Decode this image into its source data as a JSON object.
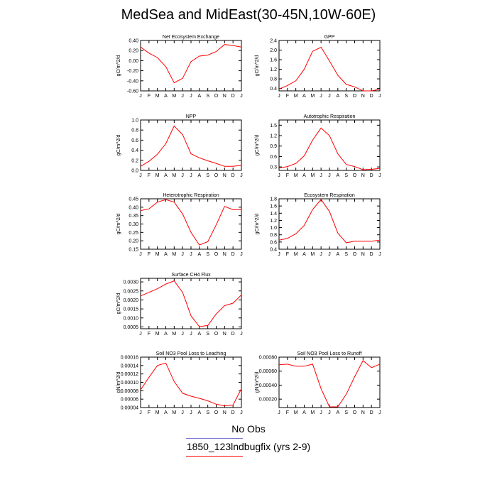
{
  "page": {
    "title": "MedSea and MidEast(30-45N,10W-60E)"
  },
  "legend": {
    "items": [
      {
        "label": "No Obs",
        "color": "#7b7bd0"
      },
      {
        "label": "1850_123lndbugfix (yrs 2-9)",
        "color": "#ff0000"
      }
    ]
  },
  "chart_data": [
    {
      "type": "line",
      "title": "Net Ecosystem Exchange",
      "ylabel": "gC/m^2/d",
      "x": [
        "J",
        "F",
        "M",
        "A",
        "M",
        "J",
        "J",
        "A",
        "S",
        "O",
        "N",
        "D",
        "J"
      ],
      "ylim": [
        -0.6,
        0.4
      ],
      "yticks": [
        "0.40",
        "0.20",
        "0.00",
        "-0.20",
        "-0.40",
        "-0.60"
      ],
      "ytick_values": [
        0.4,
        0.2,
        0.0,
        -0.2,
        -0.4,
        -0.6
      ],
      "series": [
        {
          "color": "#ff0000",
          "values": [
            0.27,
            0.15,
            0.06,
            -0.12,
            -0.44,
            -0.35,
            -0.02,
            0.09,
            0.11,
            0.18,
            0.32,
            0.3,
            0.27
          ]
        }
      ]
    },
    {
      "type": "line",
      "title": "GPP",
      "ylabel": "gC/m^2/d",
      "x": [
        "J",
        "F",
        "M",
        "A",
        "M",
        "J",
        "J",
        "A",
        "S",
        "O",
        "N",
        "D",
        "J"
      ],
      "ylim": [
        0.3,
        2.4
      ],
      "yticks": [
        "2.4",
        "2.0",
        "1.6",
        "1.2",
        "0.8",
        "0.4"
      ],
      "ytick_values": [
        2.4,
        2.0,
        1.6,
        1.2,
        0.8,
        0.4
      ],
      "series": [
        {
          "color": "#ff0000",
          "values": [
            0.38,
            0.52,
            0.72,
            1.2,
            1.95,
            2.12,
            1.55,
            0.95,
            0.57,
            0.47,
            0.3,
            0.3,
            0.37
          ]
        }
      ]
    },
    {
      "type": "line",
      "title": "NPP",
      "ylabel": "gC/m^2/d",
      "x": [
        "J",
        "F",
        "M",
        "A",
        "M",
        "J",
        "J",
        "A",
        "S",
        "O",
        "N",
        "D",
        "J"
      ],
      "ylim": [
        0.0,
        1.0
      ],
      "yticks": [
        "1.0",
        "0.8",
        "0.6",
        "0.4",
        "0.2",
        "0.0"
      ],
      "ytick_values": [
        1.0,
        0.8,
        0.6,
        0.4,
        0.2,
        0.0
      ],
      "series": [
        {
          "color": "#ff0000",
          "values": [
            0.08,
            0.18,
            0.32,
            0.53,
            0.88,
            0.71,
            0.33,
            0.25,
            0.19,
            0.14,
            0.08,
            0.08,
            0.1
          ]
        }
      ]
    },
    {
      "type": "line",
      "title": "Autotrophic Respiration",
      "ylabel": "gC/m^2/d",
      "x": [
        "J",
        "F",
        "M",
        "A",
        "M",
        "J",
        "J",
        "A",
        "S",
        "O",
        "N",
        "D",
        "J"
      ],
      "ylim": [
        0.2,
        1.65
      ],
      "yticks": [
        "1.5",
        "1.2",
        "0.9",
        "0.6",
        "0.3"
      ],
      "ytick_values": [
        1.5,
        1.2,
        0.9,
        0.6,
        0.3
      ],
      "series": [
        {
          "color": "#ff0000",
          "values": [
            0.27,
            0.31,
            0.4,
            0.62,
            1.07,
            1.42,
            1.2,
            0.68,
            0.37,
            0.31,
            0.22,
            0.23,
            0.26
          ]
        }
      ]
    },
    {
      "type": "line",
      "title": "Heterotrophic Respiration",
      "ylabel": "gC/m^2/d",
      "x": [
        "J",
        "F",
        "M",
        "A",
        "M",
        "J",
        "J",
        "A",
        "S",
        "O",
        "N",
        "D",
        "J"
      ],
      "ylim": [
        0.15,
        0.45
      ],
      "yticks": [
        "0.45",
        "0.40",
        "0.35",
        "0.30",
        "0.25",
        "0.20",
        "0.15"
      ],
      "ytick_values": [
        0.45,
        0.4,
        0.35,
        0.3,
        0.25,
        0.2,
        0.15
      ],
      "series": [
        {
          "color": "#ff0000",
          "values": [
            0.38,
            0.39,
            0.43,
            0.445,
            0.43,
            0.36,
            0.25,
            0.175,
            0.195,
            0.295,
            0.405,
            0.385,
            0.385
          ]
        }
      ]
    },
    {
      "type": "line",
      "title": "Ecosystem Respiration",
      "ylabel": "gC/m^2/d",
      "x": [
        "J",
        "F",
        "M",
        "A",
        "M",
        "J",
        "J",
        "A",
        "S",
        "O",
        "N",
        "D",
        "J"
      ],
      "ylim": [
        0.4,
        1.8
      ],
      "yticks": [
        "1.8",
        "1.6",
        "1.4",
        "1.2",
        "1.0",
        "0.8",
        "0.6",
        "0.4"
      ],
      "ytick_values": [
        1.8,
        1.6,
        1.4,
        1.2,
        1.0,
        0.8,
        0.6,
        0.4
      ],
      "series": [
        {
          "color": "#ff0000",
          "values": [
            0.65,
            0.7,
            0.83,
            1.06,
            1.5,
            1.78,
            1.45,
            0.85,
            0.58,
            0.62,
            0.62,
            0.62,
            0.65
          ]
        }
      ]
    },
    {
      "type": "line",
      "title": "Surface CH4 Flux",
      "ylabel": "gC/m^2/d",
      "x": [
        "J",
        "F",
        "M",
        "A",
        "M",
        "J",
        "J",
        "A",
        "S",
        "O",
        "N",
        "D",
        "J"
      ],
      "ylim": [
        0.0004,
        0.0032
      ],
      "yticks": [
        "0.0030",
        "0.0025",
        "0.0020",
        "0.0015",
        "0.0010",
        "0.0005"
      ],
      "ytick_values": [
        0.003,
        0.0025,
        0.002,
        0.0015,
        0.001,
        0.0005
      ],
      "series": [
        {
          "color": "#ff0000",
          "values": [
            0.00222,
            0.00242,
            0.00262,
            0.00288,
            0.00306,
            0.00242,
            0.00112,
            0.00052,
            0.00058,
            0.00122,
            0.00168,
            0.00182,
            0.00228
          ]
        }
      ]
    },
    {
      "type": "line",
      "title": "Soil NO3 Pool Loss to Leaching",
      "ylabel": "gN/m^2/d",
      "x": [
        "J",
        "F",
        "M",
        "A",
        "M",
        "J",
        "J",
        "A",
        "S",
        "O",
        "N",
        "D",
        "J"
      ],
      "ylim": [
        4e-05,
        0.00016
      ],
      "yticks": [
        "0.00016",
        "0.00014",
        "0.00012",
        "0.00010",
        "0.00008",
        "0.00006",
        "0.00004"
      ],
      "ytick_values": [
        0.00016,
        0.00014,
        0.00012,
        0.0001,
        8e-05,
        6e-05,
        4e-05
      ],
      "series": [
        {
          "color": "#ff0000",
          "values": [
            8.2e-05,
            0.000112,
            0.00014,
            0.000146,
            0.000102,
            7.4e-05,
            6.7e-05,
            6.2e-05,
            5.6e-05,
            4.8e-05,
            4.4e-05,
            4.6e-05,
            8.5e-05
          ]
        }
      ]
    },
    {
      "type": "line",
      "title": "Soil NO3 Pool Loss to Runoff",
      "ylabel": "gN/m^2/d",
      "x": [
        "J",
        "F",
        "M",
        "A",
        "M",
        "J",
        "J",
        "A",
        "S",
        "O",
        "N",
        "D",
        "J"
      ],
      "ylim": [
        8e-05,
        0.0008
      ],
      "yticks": [
        "0.00080",
        "0.00060",
        "0.00040",
        "0.00020"
      ],
      "ytick_values": [
        0.0008,
        0.0006,
        0.0004,
        0.0002
      ],
      "series": [
        {
          "color": "#ff0000",
          "values": [
            0.00069,
            0.0007,
            0.00067,
            0.00067,
            0.0007,
            0.00035,
            9e-05,
            9e-05,
            0.00027,
            0.00052,
            0.00075,
            0.00065,
            0.0007
          ]
        }
      ]
    }
  ]
}
